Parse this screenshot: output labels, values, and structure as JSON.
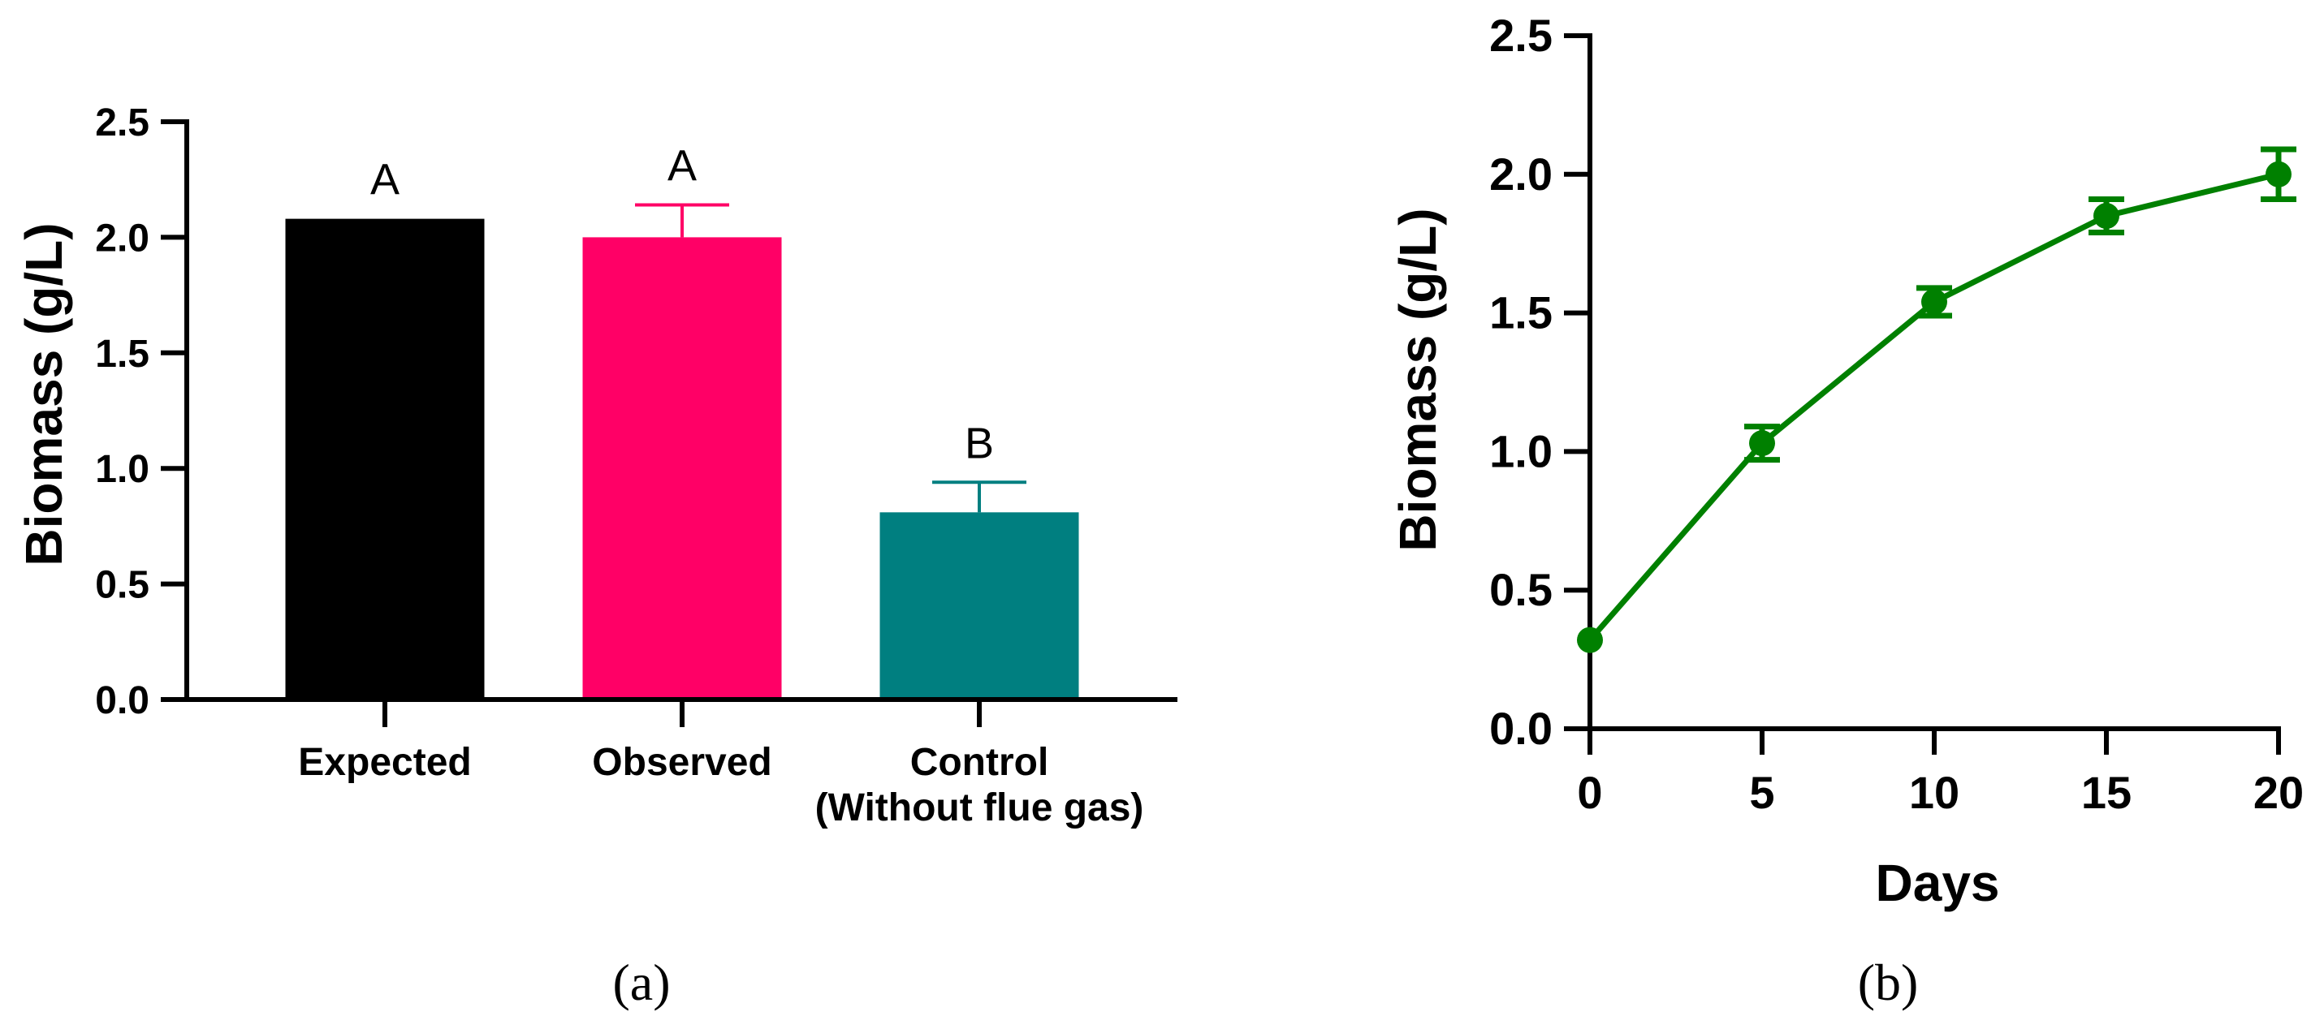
{
  "chart_data": [
    {
      "type": "bar",
      "panel_label": "(a)",
      "categories": [
        "Expected",
        "Observed",
        "Control\n(Without flue gas)"
      ],
      "values": [
        2.08,
        2.0,
        0.81
      ],
      "errors": [
        0,
        0.14,
        0.13
      ],
      "significance_letters": [
        "A",
        "A",
        "B"
      ],
      "colors": [
        "#000000",
        "#FF0066",
        "#007F80"
      ],
      "ylabel": "Biomass (g/L)",
      "xlabel": "",
      "ylim": [
        0,
        2.5
      ],
      "yticks": [
        "0.0",
        "0.5",
        "1.0",
        "1.5",
        "2.0",
        "2.5"
      ],
      "grid": false
    },
    {
      "type": "line",
      "panel_label": "(b)",
      "x": [
        0,
        5,
        10,
        15,
        20
      ],
      "values": [
        0.32,
        1.03,
        1.54,
        1.85,
        2.0
      ],
      "errors": [
        0.02,
        0.06,
        0.05,
        0.06,
        0.09
      ],
      "color": "#008000",
      "xlabel": "Days",
      "ylabel": "Biomass (g/L)",
      "xlim": [
        0,
        20
      ],
      "ylim": [
        0,
        2.5
      ],
      "xticks": [
        "0",
        "5",
        "10",
        "15",
        "20"
      ],
      "yticks": [
        "0.0",
        "0.5",
        "1.0",
        "1.5",
        "2.0",
        "2.5"
      ],
      "grid": false
    }
  ]
}
